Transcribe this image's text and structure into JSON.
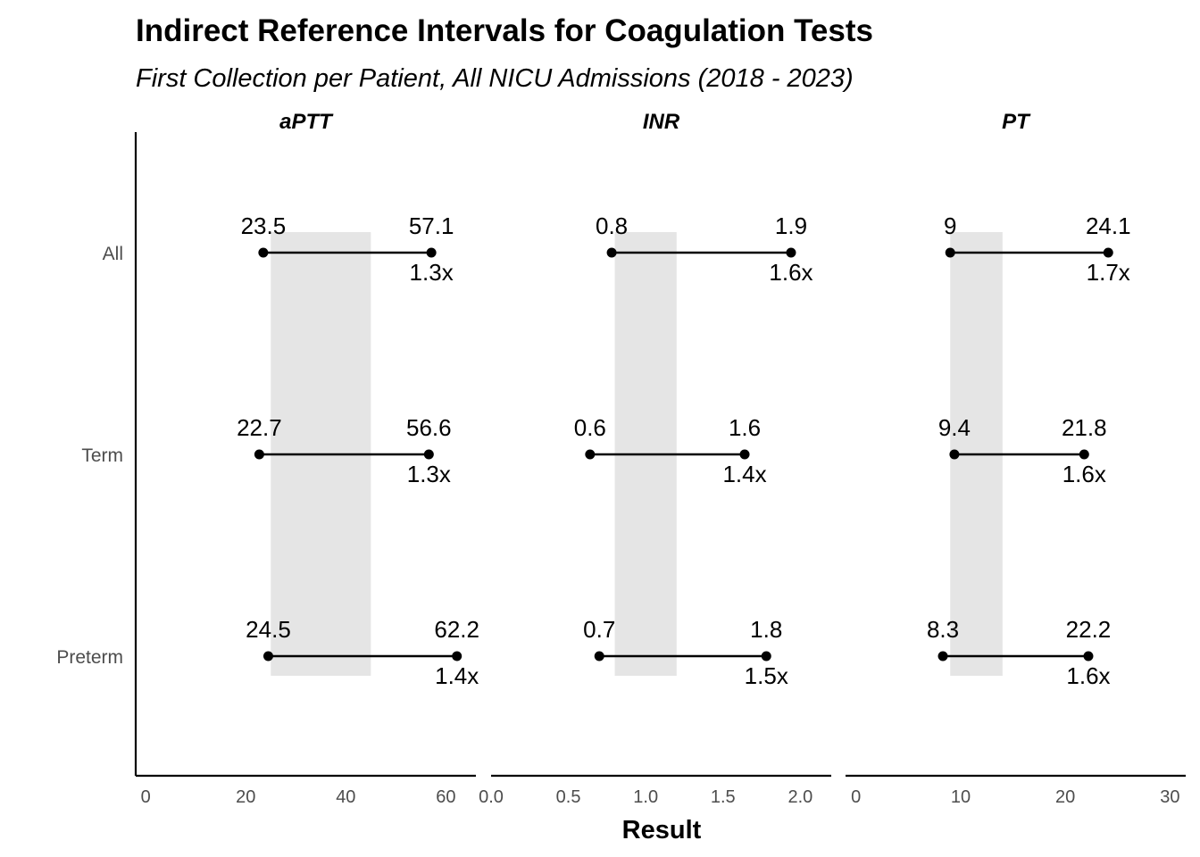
{
  "chart_data": {
    "type": "dumbbell",
    "title": "Indirect Reference Intervals for Coagulation Tests",
    "subtitle": "First Collection per Patient, All NICU Admissions (2018 - 2023)",
    "xlabel": "Result",
    "ylabel": "",
    "categories": [
      "All",
      "Term",
      "Preterm"
    ],
    "grid": false,
    "colors": {
      "point": "#000000",
      "segment": "#000000",
      "reference_band": "#e5e5e5",
      "axis": "#000000"
    },
    "panels": [
      {
        "name": "aPTT",
        "xlim": [
          -2,
          66
        ],
        "ticks": [
          0,
          20,
          40,
          60
        ],
        "tick_labels": [
          "0",
          "20",
          "40",
          "60"
        ],
        "reference_band": [
          25,
          45
        ],
        "rows": [
          {
            "group": "All",
            "low": 23.5,
            "high": 57.1,
            "low_label": "23.5",
            "high_label": "57.1",
            "ratio_label": "1.3x"
          },
          {
            "group": "Term",
            "low": 22.7,
            "high": 56.6,
            "low_label": "22.7",
            "high_label": "56.6",
            "ratio_label": "1.3x"
          },
          {
            "group": "Preterm",
            "low": 24.5,
            "high": 62.2,
            "low_label": "24.5",
            "high_label": "62.2",
            "ratio_label": "1.4x"
          }
        ]
      },
      {
        "name": "INR",
        "xlim": [
          0,
          2.2
        ],
        "ticks": [
          0.0,
          0.5,
          1.0,
          1.5,
          2.0
        ],
        "tick_labels": [
          "0.0",
          "0.5",
          "1.0",
          "1.5",
          "2.0"
        ],
        "reference_band": [
          0.8,
          1.2
        ],
        "rows": [
          {
            "group": "All",
            "low": 0.78,
            "high": 1.94,
            "low_label": "0.8",
            "high_label": "1.9",
            "ratio_label": "1.6x"
          },
          {
            "group": "Term",
            "low": 0.64,
            "high": 1.64,
            "low_label": "0.6",
            "high_label": "1.6",
            "ratio_label": "1.4x"
          },
          {
            "group": "Preterm",
            "low": 0.7,
            "high": 1.78,
            "low_label": "0.7",
            "high_label": "1.8",
            "ratio_label": "1.5x"
          }
        ]
      },
      {
        "name": "PT",
        "xlim": [
          -1,
          31.5
        ],
        "ticks": [
          0,
          10,
          20,
          30
        ],
        "tick_labels": [
          "0",
          "10",
          "20",
          "30"
        ],
        "reference_band": [
          9,
          14
        ],
        "rows": [
          {
            "group": "All",
            "low": 9.0,
            "high": 24.1,
            "low_label": "9",
            "high_label": "24.1",
            "ratio_label": "1.7x"
          },
          {
            "group": "Term",
            "low": 9.4,
            "high": 21.8,
            "low_label": "9.4",
            "high_label": "21.8",
            "ratio_label": "1.6x"
          },
          {
            "group": "Preterm",
            "low": 8.3,
            "high": 22.2,
            "low_label": "8.3",
            "high_label": "22.2",
            "ratio_label": "1.6x"
          }
        ]
      }
    ]
  }
}
